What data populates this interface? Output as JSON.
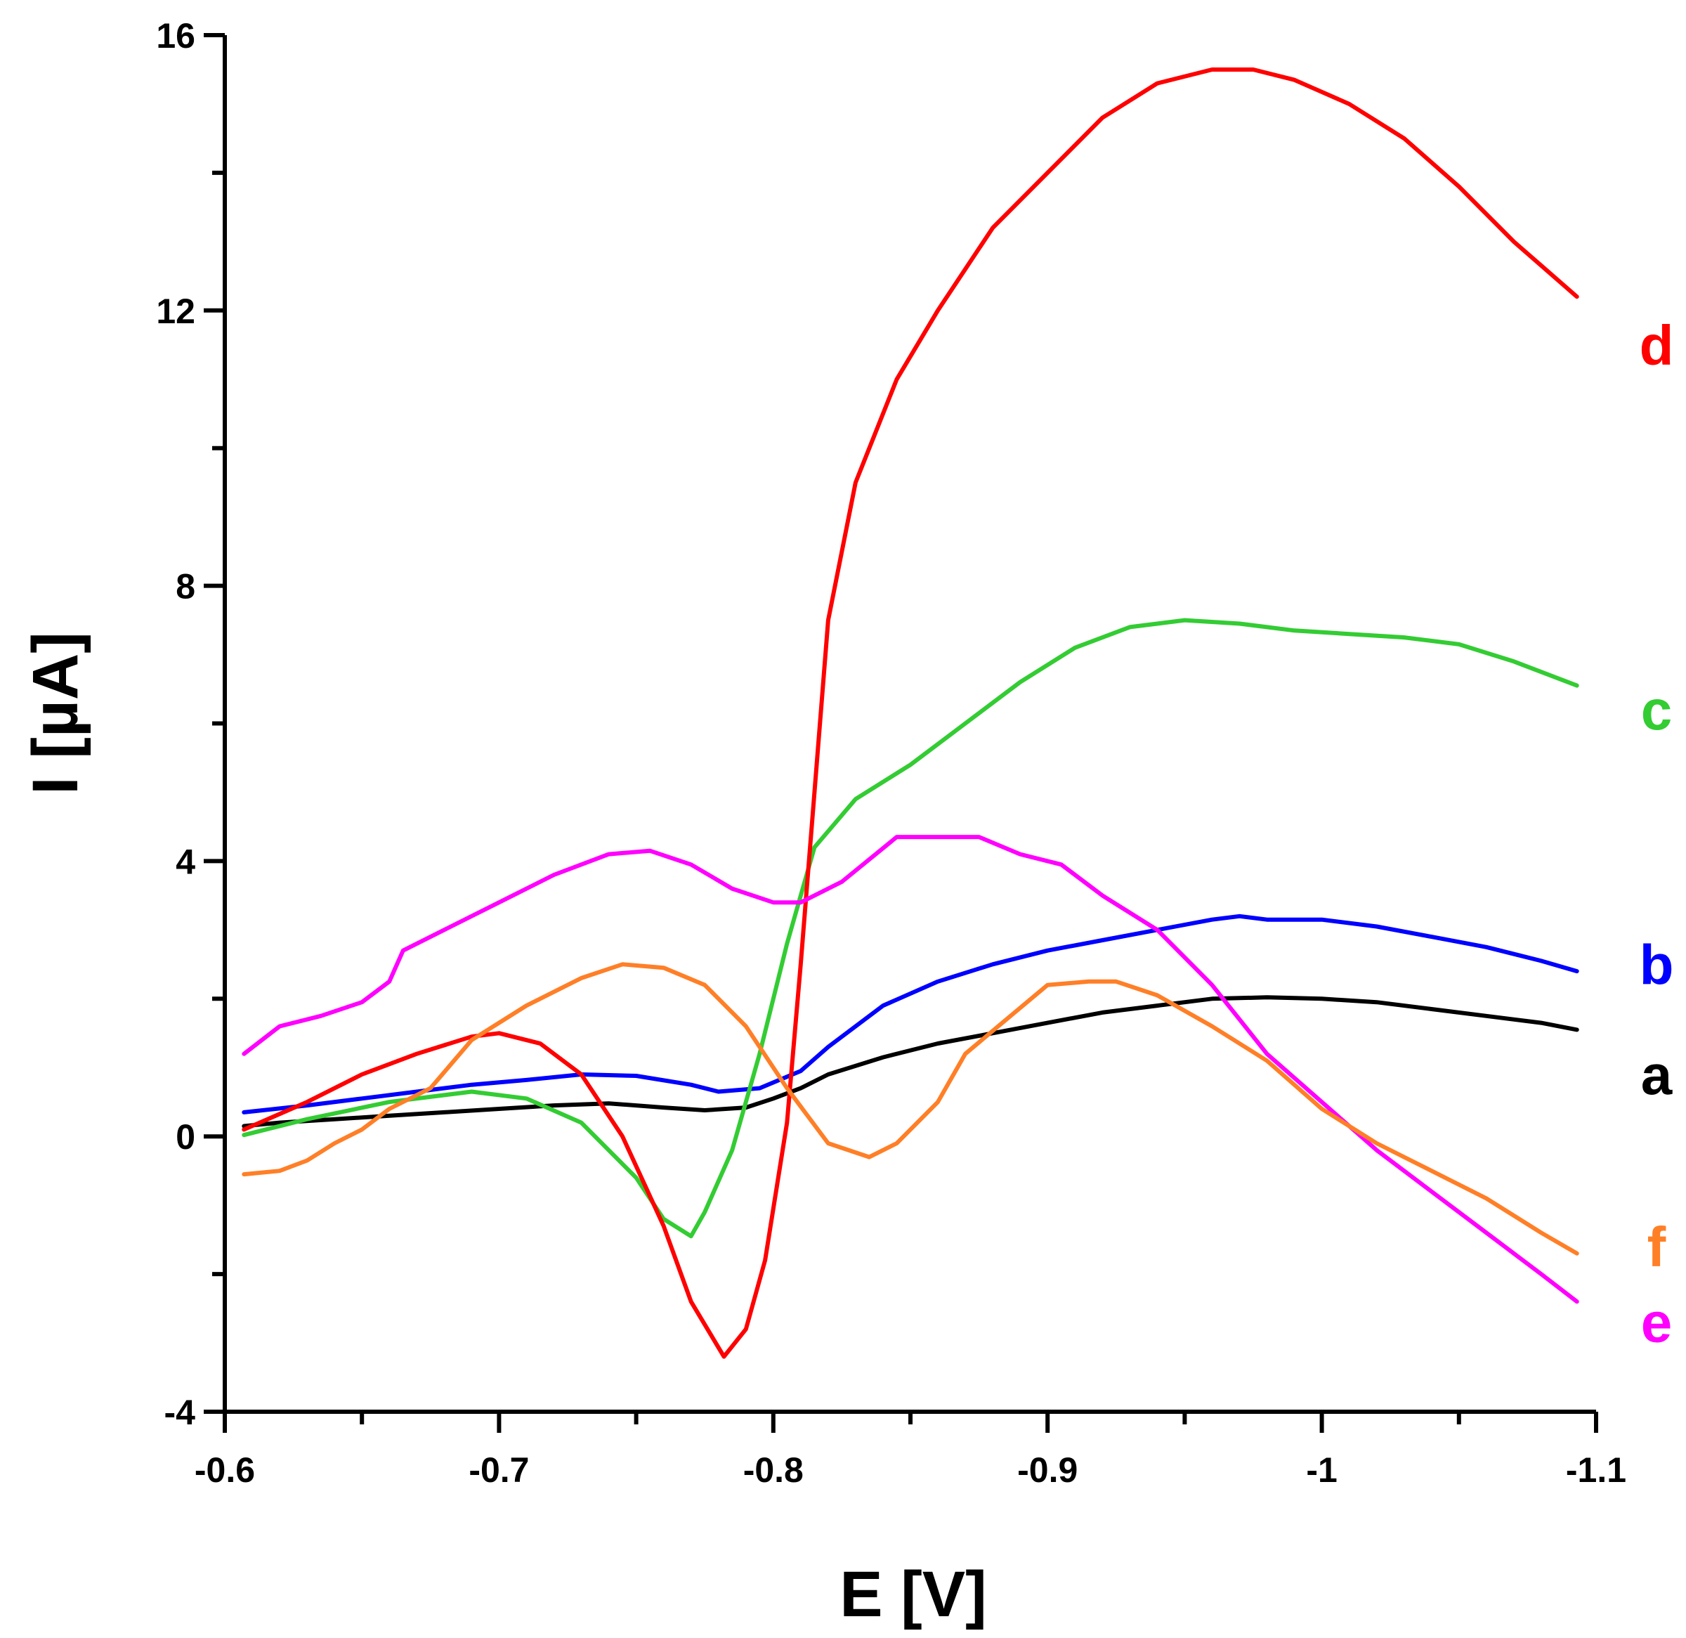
{
  "chart_data": {
    "type": "line",
    "title": "",
    "xlabel": "E [V]",
    "ylabel": "I [µA]",
    "xlim": [
      -0.6,
      -1.1
    ],
    "ylim": [
      -4,
      16
    ],
    "x_ticks": [
      -0.6,
      -0.7,
      -0.8,
      -0.9,
      -1.0,
      -1.1
    ],
    "x_tick_labels": [
      "-0.6",
      "-0.7",
      "-0.8",
      "-0.9",
      "-1",
      "-1.1"
    ],
    "y_ticks": [
      -4,
      0,
      4,
      8,
      12,
      16
    ],
    "y_tick_labels": [
      "-4",
      "0",
      "4",
      "8",
      "12",
      "16"
    ],
    "grid": false,
    "series": [
      {
        "name": "a",
        "color": "#000000",
        "label_y": 0.9,
        "points": [
          [
            -0.607,
            0.15
          ],
          [
            -0.62,
            0.2
          ],
          [
            -0.64,
            0.25
          ],
          [
            -0.66,
            0.3
          ],
          [
            -0.68,
            0.35
          ],
          [
            -0.7,
            0.4
          ],
          [
            -0.72,
            0.45
          ],
          [
            -0.74,
            0.48
          ],
          [
            -0.76,
            0.42
          ],
          [
            -0.775,
            0.38
          ],
          [
            -0.79,
            0.42
          ],
          [
            -0.8,
            0.55
          ],
          [
            -0.81,
            0.7
          ],
          [
            -0.82,
            0.9
          ],
          [
            -0.84,
            1.15
          ],
          [
            -0.86,
            1.35
          ],
          [
            -0.88,
            1.5
          ],
          [
            -0.9,
            1.65
          ],
          [
            -0.92,
            1.8
          ],
          [
            -0.94,
            1.9
          ],
          [
            -0.96,
            2.0
          ],
          [
            -0.98,
            2.02
          ],
          [
            -1.0,
            2.0
          ],
          [
            -1.02,
            1.95
          ],
          [
            -1.04,
            1.85
          ],
          [
            -1.06,
            1.75
          ],
          [
            -1.08,
            1.65
          ],
          [
            -1.093,
            1.55
          ]
        ]
      },
      {
        "name": "b",
        "color": "#0000ff",
        "label_y": 2.5,
        "points": [
          [
            -0.607,
            0.35
          ],
          [
            -0.63,
            0.45
          ],
          [
            -0.65,
            0.55
          ],
          [
            -0.67,
            0.65
          ],
          [
            -0.69,
            0.75
          ],
          [
            -0.71,
            0.82
          ],
          [
            -0.73,
            0.9
          ],
          [
            -0.75,
            0.88
          ],
          [
            -0.77,
            0.75
          ],
          [
            -0.78,
            0.65
          ],
          [
            -0.795,
            0.7
          ],
          [
            -0.81,
            0.95
          ],
          [
            -0.82,
            1.3
          ],
          [
            -0.84,
            1.9
          ],
          [
            -0.86,
            2.25
          ],
          [
            -0.88,
            2.5
          ],
          [
            -0.9,
            2.7
          ],
          [
            -0.92,
            2.85
          ],
          [
            -0.94,
            3.0
          ],
          [
            -0.96,
            3.15
          ],
          [
            -0.97,
            3.2
          ],
          [
            -0.98,
            3.15
          ],
          [
            -1.0,
            3.15
          ],
          [
            -1.02,
            3.05
          ],
          [
            -1.04,
            2.9
          ],
          [
            -1.06,
            2.75
          ],
          [
            -1.08,
            2.55
          ],
          [
            -1.093,
            2.4
          ]
        ]
      },
      {
        "name": "c",
        "color": "#33cc33",
        "label_y": 6.2,
        "points": [
          [
            -0.607,
            0.02
          ],
          [
            -0.63,
            0.25
          ],
          [
            -0.66,
            0.5
          ],
          [
            -0.69,
            0.65
          ],
          [
            -0.71,
            0.55
          ],
          [
            -0.73,
            0.2
          ],
          [
            -0.75,
            -0.6
          ],
          [
            -0.76,
            -1.2
          ],
          [
            -0.77,
            -1.45
          ],
          [
            -0.775,
            -1.1
          ],
          [
            -0.785,
            -0.2
          ],
          [
            -0.795,
            1.2
          ],
          [
            -0.805,
            2.8
          ],
          [
            -0.815,
            4.2
          ],
          [
            -0.83,
            4.9
          ],
          [
            -0.85,
            5.4
          ],
          [
            -0.87,
            6.0
          ],
          [
            -0.89,
            6.6
          ],
          [
            -0.91,
            7.1
          ],
          [
            -0.93,
            7.4
          ],
          [
            -0.95,
            7.5
          ],
          [
            -0.97,
            7.45
          ],
          [
            -0.99,
            7.35
          ],
          [
            -1.01,
            7.3
          ],
          [
            -1.03,
            7.25
          ],
          [
            -1.05,
            7.15
          ],
          [
            -1.07,
            6.9
          ],
          [
            -1.093,
            6.55
          ]
        ]
      },
      {
        "name": "d",
        "color": "#ff0000",
        "label_y": 11.5,
        "points": [
          [
            -0.607,
            0.1
          ],
          [
            -0.63,
            0.5
          ],
          [
            -0.65,
            0.9
          ],
          [
            -0.67,
            1.2
          ],
          [
            -0.69,
            1.45
          ],
          [
            -0.7,
            1.5
          ],
          [
            -0.715,
            1.35
          ],
          [
            -0.73,
            0.9
          ],
          [
            -0.745,
            0.0
          ],
          [
            -0.76,
            -1.3
          ],
          [
            -0.77,
            -2.4
          ],
          [
            -0.782,
            -3.2
          ],
          [
            -0.79,
            -2.8
          ],
          [
            -0.797,
            -1.8
          ],
          [
            -0.805,
            0.2
          ],
          [
            -0.81,
            2.5
          ],
          [
            -0.815,
            5.0
          ],
          [
            -0.82,
            7.5
          ],
          [
            -0.83,
            9.5
          ],
          [
            -0.845,
            11.0
          ],
          [
            -0.86,
            12.0
          ],
          [
            -0.88,
            13.2
          ],
          [
            -0.9,
            14.0
          ],
          [
            -0.92,
            14.8
          ],
          [
            -0.94,
            15.3
          ],
          [
            -0.96,
            15.5
          ],
          [
            -0.975,
            15.5
          ],
          [
            -0.99,
            15.35
          ],
          [
            -1.01,
            15.0
          ],
          [
            -1.03,
            14.5
          ],
          [
            -1.05,
            13.8
          ],
          [
            -1.07,
            13.0
          ],
          [
            -1.093,
            12.2
          ]
        ]
      },
      {
        "name": "e",
        "color": "#ff00ff",
        "label_y": -2.7,
        "points": [
          [
            -0.607,
            1.2
          ],
          [
            -0.62,
            1.6
          ],
          [
            -0.635,
            1.75
          ],
          [
            -0.65,
            1.95
          ],
          [
            -0.66,
            2.25
          ],
          [
            -0.665,
            2.7
          ],
          [
            -0.68,
            3.0
          ],
          [
            -0.7,
            3.4
          ],
          [
            -0.72,
            3.8
          ],
          [
            -0.74,
            4.1
          ],
          [
            -0.755,
            4.15
          ],
          [
            -0.77,
            3.95
          ],
          [
            -0.785,
            3.6
          ],
          [
            -0.8,
            3.4
          ],
          [
            -0.81,
            3.4
          ],
          [
            -0.825,
            3.7
          ],
          [
            -0.845,
            4.35
          ],
          [
            -0.86,
            4.35
          ],
          [
            -0.875,
            4.35
          ],
          [
            -0.89,
            4.1
          ],
          [
            -0.905,
            3.95
          ],
          [
            -0.92,
            3.5
          ],
          [
            -0.94,
            3.0
          ],
          [
            -0.96,
            2.2
          ],
          [
            -0.98,
            1.2
          ],
          [
            -1.0,
            0.5
          ],
          [
            -1.02,
            -0.2
          ],
          [
            -1.04,
            -0.8
          ],
          [
            -1.06,
            -1.4
          ],
          [
            -1.08,
            -2.0
          ],
          [
            -1.093,
            -2.4
          ]
        ]
      },
      {
        "name": "f",
        "color": "#ff7f27",
        "label_y": -1.6,
        "points": [
          [
            -0.607,
            -0.55
          ],
          [
            -0.62,
            -0.5
          ],
          [
            -0.63,
            -0.35
          ],
          [
            -0.64,
            -0.1
          ],
          [
            -0.65,
            0.1
          ],
          [
            -0.66,
            0.4
          ],
          [
            -0.675,
            0.7
          ],
          [
            -0.69,
            1.4
          ],
          [
            -0.71,
            1.9
          ],
          [
            -0.73,
            2.3
          ],
          [
            -0.745,
            2.5
          ],
          [
            -0.76,
            2.45
          ],
          [
            -0.775,
            2.2
          ],
          [
            -0.79,
            1.6
          ],
          [
            -0.805,
            0.7
          ],
          [
            -0.82,
            -0.1
          ],
          [
            -0.835,
            -0.3
          ],
          [
            -0.845,
            -0.1
          ],
          [
            -0.86,
            0.5
          ],
          [
            -0.87,
            1.2
          ],
          [
            -0.885,
            1.7
          ],
          [
            -0.9,
            2.2
          ],
          [
            -0.915,
            2.25
          ],
          [
            -0.925,
            2.25
          ],
          [
            -0.94,
            2.05
          ],
          [
            -0.96,
            1.6
          ],
          [
            -0.98,
            1.1
          ],
          [
            -1.0,
            0.4
          ],
          [
            -1.02,
            -0.1
          ],
          [
            -1.04,
            -0.5
          ],
          [
            -1.06,
            -0.9
          ],
          [
            -1.08,
            -1.4
          ],
          [
            -1.093,
            -1.7
          ]
        ]
      }
    ]
  }
}
